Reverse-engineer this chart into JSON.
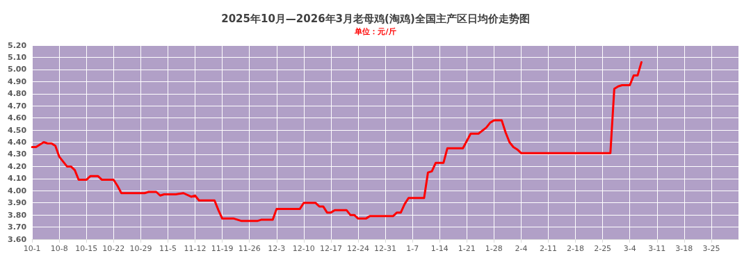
{
  "chart_data": {
    "type": "line",
    "title": "2025年10月—2026年3月老母鸡(淘鸡)全国主产区日均价走势图",
    "subtitle": "单位：元/斤",
    "x": [
      "2025-10-01",
      "2025-10-02",
      "2025-10-04",
      "2025-10-05",
      "2025-10-06",
      "2025-10-07",
      "2025-10-08",
      "2025-10-10",
      "2025-10-11",
      "2025-10-12",
      "2025-10-13",
      "2025-10-15",
      "2025-10-16",
      "2025-10-18",
      "2025-10-19",
      "2025-10-22",
      "2025-10-23",
      "2025-10-24",
      "2025-10-30",
      "2025-10-31",
      "2025-11-02",
      "2025-11-03",
      "2025-11-04",
      "2025-11-07",
      "2025-11-09",
      "2025-11-11",
      "2025-11-12",
      "2025-11-13",
      "2025-11-17",
      "2025-11-18",
      "2025-11-19",
      "2025-11-22",
      "2025-11-24",
      "2025-11-28",
      "2025-11-29",
      "2025-12-02",
      "2025-12-03",
      "2025-12-09",
      "2025-12-10",
      "2025-12-13",
      "2025-12-14",
      "2025-12-15",
      "2025-12-16",
      "2025-12-17",
      "2025-12-18",
      "2025-12-21",
      "2025-12-22",
      "2025-12-23",
      "2025-12-24",
      "2025-12-26",
      "2025-12-27",
      "2026-01-02",
      "2026-01-03",
      "2026-01-04",
      "2026-01-05",
      "2026-01-06",
      "2026-01-10",
      "2026-01-11",
      "2026-01-12",
      "2026-01-13",
      "2026-01-15",
      "2026-01-16",
      "2026-01-20",
      "2026-01-22",
      "2026-01-24",
      "2026-01-26",
      "2026-01-27",
      "2026-01-28",
      "2026-01-30",
      "2026-01-31",
      "2026-02-01",
      "2026-02-02",
      "2026-02-03",
      "2026-02-04",
      "2026-02-27",
      "2026-02-28",
      "2026-03-01",
      "2026-03-02",
      "2026-03-04",
      "2026-03-05",
      "2026-03-06",
      "2026-03-07"
    ],
    "series": [
      {
        "color": "#ff0000",
        "values": [
          4.36,
          4.36,
          4.4,
          4.39,
          4.39,
          4.37,
          4.28,
          4.2,
          4.2,
          4.17,
          4.09,
          4.09,
          4.12,
          4.12,
          4.09,
          4.09,
          4.04,
          3.98,
          3.98,
          3.99,
          3.99,
          3.96,
          3.97,
          3.97,
          3.98,
          3.95,
          3.96,
          3.92,
          3.92,
          3.84,
          3.77,
          3.77,
          3.75,
          3.75,
          3.76,
          3.76,
          3.85,
          3.85,
          3.9,
          3.9,
          3.87,
          3.87,
          3.82,
          3.82,
          3.84,
          3.84,
          3.8,
          3.8,
          3.77,
          3.77,
          3.79,
          3.79,
          3.82,
          3.82,
          3.89,
          3.94,
          3.94,
          4.15,
          4.16,
          4.23,
          4.23,
          4.35,
          4.35,
          4.47,
          4.47,
          4.52,
          4.56,
          4.58,
          4.58,
          4.48,
          4.4,
          4.36,
          4.34,
          4.31,
          4.31,
          4.84,
          4.86,
          4.87,
          4.87,
          4.95,
          4.95,
          5.06
        ]
      }
    ],
    "xlim": [
      "2025-10-01",
      "2026-04-01"
    ],
    "xticks": [
      {
        "value": "2025-10-01",
        "label": "10-1"
      },
      {
        "value": "2025-10-08",
        "label": "10-8"
      },
      {
        "value": "2025-10-15",
        "label": "10-15"
      },
      {
        "value": "2025-10-22",
        "label": "10-22"
      },
      {
        "value": "2025-10-29",
        "label": "10-29"
      },
      {
        "value": "2025-11-05",
        "label": "11-5"
      },
      {
        "value": "2025-11-12",
        "label": "11-12"
      },
      {
        "value": "2025-11-19",
        "label": "11-19"
      },
      {
        "value": "2025-11-26",
        "label": "11-26"
      },
      {
        "value": "2025-12-03",
        "label": "12-3"
      },
      {
        "value": "2025-12-10",
        "label": "12-10"
      },
      {
        "value": "2025-12-17",
        "label": "12-17"
      },
      {
        "value": "2025-12-24",
        "label": "12-24"
      },
      {
        "value": "2025-12-31",
        "label": "12-31"
      },
      {
        "value": "2026-01-07",
        "label": "1-7"
      },
      {
        "value": "2026-01-14",
        "label": "1-14"
      },
      {
        "value": "2026-01-21",
        "label": "1-21"
      },
      {
        "value": "2026-01-28",
        "label": "1-28"
      },
      {
        "value": "2026-02-04",
        "label": "2-4"
      },
      {
        "value": "2026-02-11",
        "label": "2-11"
      },
      {
        "value": "2026-02-18",
        "label": "2-18"
      },
      {
        "value": "2026-02-25",
        "label": "2-25"
      },
      {
        "value": "2026-03-04",
        "label": "3-4"
      },
      {
        "value": "2026-03-11",
        "label": "3-11"
      },
      {
        "value": "2026-03-18",
        "label": "3-18"
      },
      {
        "value": "2026-03-25",
        "label": "3-25"
      }
    ],
    "ylim": [
      3.6,
      5.2
    ],
    "yticks": [
      {
        "value": 3.6,
        "label": "3.60"
      },
      {
        "value": 3.7,
        "label": "3.70"
      },
      {
        "value": 3.8,
        "label": "3.80"
      },
      {
        "value": 3.9,
        "label": "3.90"
      },
      {
        "value": 4.0,
        "label": "4.00"
      },
      {
        "value": 4.1,
        "label": "4.10"
      },
      {
        "value": 4.2,
        "label": "4.20"
      },
      {
        "value": 4.3,
        "label": "4.30"
      },
      {
        "value": 4.4,
        "label": "4.40"
      },
      {
        "value": 4.5,
        "label": "4.50"
      },
      {
        "value": 4.6,
        "label": "4.60"
      },
      {
        "value": 4.7,
        "label": "4.70"
      },
      {
        "value": 4.8,
        "label": "4.80"
      },
      {
        "value": 4.9,
        "label": "4.90"
      },
      {
        "value": 5.0,
        "label": "5.00"
      },
      {
        "value": 5.1,
        "label": "5.10"
      },
      {
        "value": 5.2,
        "label": "5.20"
      }
    ],
    "grid": true,
    "marker": "none",
    "line_style": "solid"
  }
}
